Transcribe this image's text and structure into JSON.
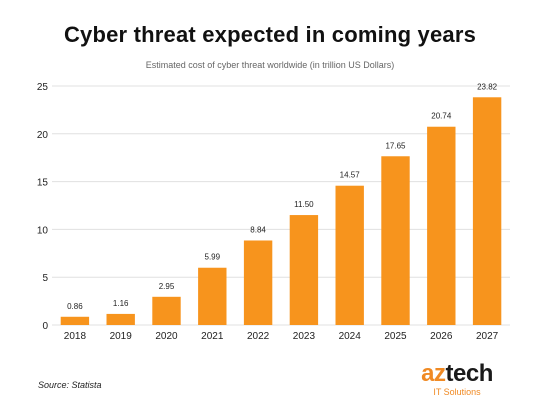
{
  "header": {
    "title": "Cyber threat expected in coming years",
    "subtitle": "Estimated cost of cyber threat worldwide (in trillion US Dollars)"
  },
  "footer": {
    "source": "Source: Statista",
    "logo_first": "az",
    "logo_rest": "tech",
    "logo_tagline": "IT Solutions"
  },
  "colors": {
    "bar": "#f7941d",
    "grid": "#e0e0e0",
    "brand_orange": "#f08a24"
  },
  "chart_data": {
    "type": "bar",
    "title": "Cyber threat expected in coming years",
    "subtitle": "Estimated cost of cyber threat worldwide (in trillion US Dollars)",
    "categories": [
      "2018",
      "2019",
      "2020",
      "2021",
      "2022",
      "2023",
      "2024",
      "2025",
      "2026",
      "2027"
    ],
    "values": [
      0.86,
      1.16,
      2.95,
      5.99,
      8.84,
      11.5,
      14.57,
      17.65,
      20.74,
      23.82
    ],
    "value_labels": [
      "0.86",
      "1.16",
      "2.95",
      "5.99",
      "8.84",
      "11.50",
      "14.57",
      "17.65",
      "20.74",
      "23.82"
    ],
    "yticks": [
      "0",
      "5",
      "10",
      "15",
      "20",
      "25"
    ],
    "ylim": [
      0,
      25
    ],
    "grid": true,
    "legend": "none"
  }
}
